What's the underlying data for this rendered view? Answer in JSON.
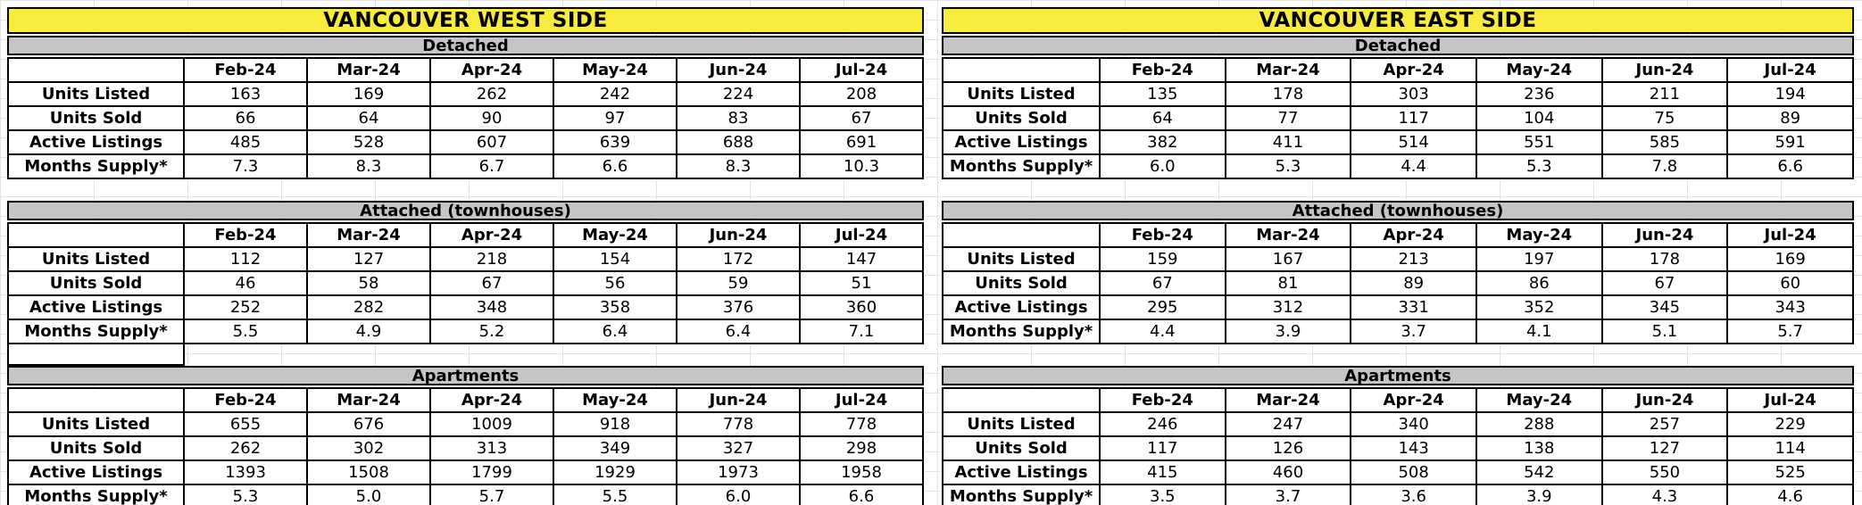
{
  "months": [
    "Feb-24",
    "Mar-24",
    "Apr-24",
    "May-24",
    "Jun-24",
    "Jul-24"
  ],
  "row_labels": [
    "Units Listed",
    "Units Sold",
    "Active Listings",
    "Months Supply*"
  ],
  "colors": {
    "title_bg": "#F7EB3E",
    "section_bg": "#C5C5C5",
    "border": "#000000",
    "gridline": "#E3E3E3",
    "text": "#000000"
  },
  "tables": [
    {
      "title": "VANCOUVER WEST SIDE",
      "sections": [
        {
          "name": "Detached",
          "rows": [
            {
              "label": "Units Listed",
              "values": [
                "163",
                "169",
                "262",
                "242",
                "224",
                "208"
              ]
            },
            {
              "label": "Units Sold",
              "values": [
                "66",
                "64",
                "90",
                "97",
                "83",
                "67"
              ]
            },
            {
              "label": "Active Listings",
              "values": [
                "485",
                "528",
                "607",
                "639",
                "688",
                "691"
              ]
            },
            {
              "label": "Months Supply*",
              "values": [
                "7.3",
                "8.3",
                "6.7",
                "6.6",
                "8.3",
                "10.3"
              ]
            }
          ]
        },
        {
          "name": "Attached (townhouses)",
          "rows": [
            {
              "label": "Units Listed",
              "values": [
                "112",
                "127",
                "218",
                "154",
                "172",
                "147"
              ]
            },
            {
              "label": "Units Sold",
              "values": [
                "46",
                "58",
                "67",
                "56",
                "59",
                "51"
              ]
            },
            {
              "label": "Active Listings",
              "values": [
                "252",
                "282",
                "348",
                "358",
                "376",
                "360"
              ]
            },
            {
              "label": "Months Supply*",
              "values": [
                "5.5",
                "4.9",
                "5.2",
                "6.4",
                "6.4",
                "7.1"
              ]
            }
          ]
        },
        {
          "name": "Apartments",
          "rows": [
            {
              "label": "Units Listed",
              "values": [
                "655",
                "676",
                "1009",
                "918",
                "778",
                "778"
              ]
            },
            {
              "label": "Units Sold",
              "values": [
                "262",
                "302",
                "313",
                "349",
                "327",
                "298"
              ]
            },
            {
              "label": "Active Listings",
              "values": [
                "1393",
                "1508",
                "1799",
                "1929",
                "1973",
                "1958"
              ]
            },
            {
              "label": "Months Supply*",
              "values": [
                "5.3",
                "5.0",
                "5.7",
                "5.5",
                "6.0",
                "6.6"
              ]
            }
          ]
        }
      ]
    },
    {
      "title": "VANCOUVER EAST SIDE",
      "sections": [
        {
          "name": "Detached",
          "rows": [
            {
              "label": "Units Listed",
              "values": [
                "135",
                "178",
                "303",
                "236",
                "211",
                "194"
              ]
            },
            {
              "label": "Units Sold",
              "values": [
                "64",
                "77",
                "117",
                "104",
                "75",
                "89"
              ]
            },
            {
              "label": "Active Listings",
              "values": [
                "382",
                "411",
                "514",
                "551",
                "585",
                "591"
              ]
            },
            {
              "label": "Months Supply*",
              "values": [
                "6.0",
                "5.3",
                "4.4",
                "5.3",
                "7.8",
                "6.6"
              ]
            }
          ]
        },
        {
          "name": "Attached (townhouses)",
          "rows": [
            {
              "label": "Units Listed",
              "values": [
                "159",
                "167",
                "213",
                "197",
                "178",
                "169"
              ]
            },
            {
              "label": "Units Sold",
              "values": [
                "67",
                "81",
                "89",
                "86",
                "67",
                "60"
              ]
            },
            {
              "label": "Active Listings",
              "values": [
                "295",
                "312",
                "331",
                "352",
                "345",
                "343"
              ]
            },
            {
              "label": "Months Supply*",
              "values": [
                "4.4",
                "3.9",
                "3.7",
                "4.1",
                "5.1",
                "5.7"
              ]
            }
          ]
        },
        {
          "name": "Apartments",
          "rows": [
            {
              "label": "Units Listed",
              "values": [
                "246",
                "247",
                "340",
                "288",
                "257",
                "229"
              ]
            },
            {
              "label": "Units Sold",
              "values": [
                "117",
                "126",
                "143",
                "138",
                "127",
                "114"
              ]
            },
            {
              "label": "Active Listings",
              "values": [
                "415",
                "460",
                "508",
                "542",
                "550",
                "525"
              ]
            },
            {
              "label": "Months Supply*",
              "values": [
                "3.5",
                "3.7",
                "3.6",
                "3.9",
                "4.3",
                "4.6"
              ]
            }
          ]
        }
      ]
    }
  ]
}
